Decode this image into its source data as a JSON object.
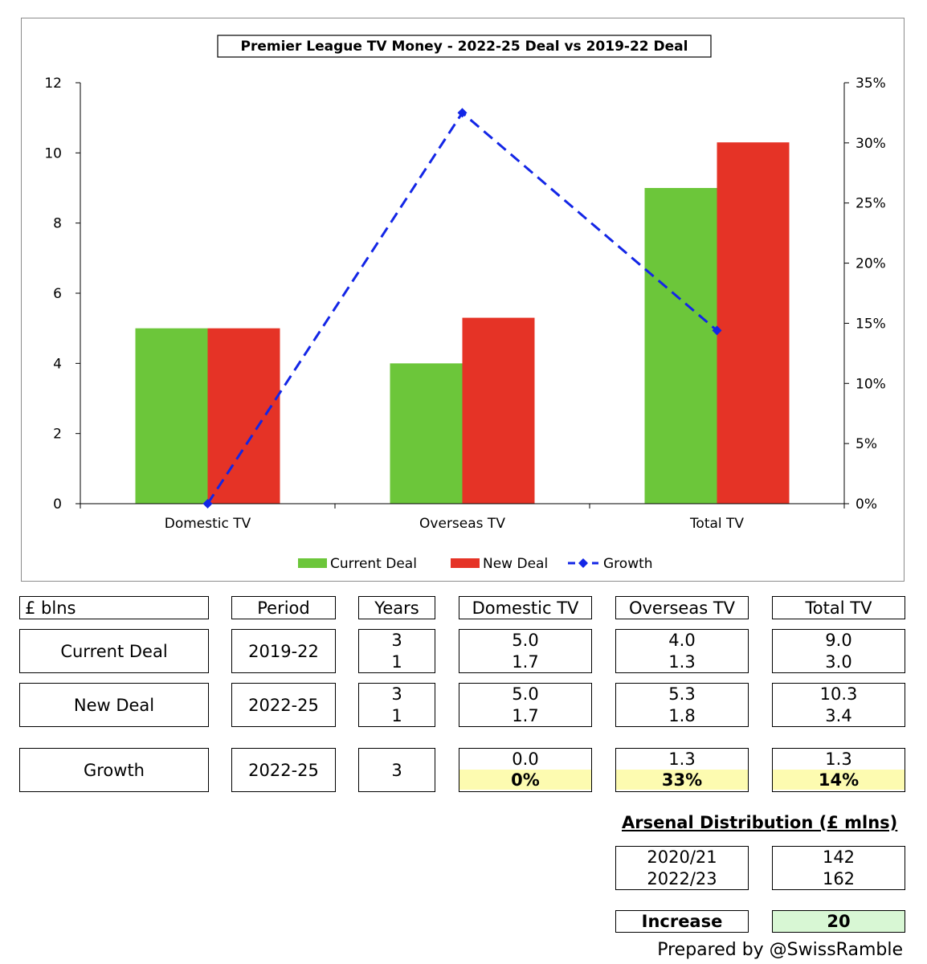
{
  "chart_data": {
    "type": "bar",
    "title": "Premier League TV Money - 2022-25 Deal vs 2019-22 Deal",
    "categories": [
      "Domestic TV",
      "Overseas TV",
      "Total TV"
    ],
    "series": [
      {
        "name": "Current Deal",
        "type": "bar",
        "axis": "left",
        "color": "#6cc63a",
        "values": [
          5.0,
          4.0,
          9.0
        ]
      },
      {
        "name": "New Deal",
        "type": "bar",
        "axis": "left",
        "color": "#e53326",
        "values": [
          5.0,
          5.3,
          10.3
        ]
      },
      {
        "name": "Growth",
        "type": "line",
        "axis": "right",
        "color": "#1326e6",
        "style": "dashed",
        "marker": "diamond",
        "values": [
          0.0,
          32.5,
          14.4
        ]
      }
    ],
    "y_left": {
      "min": 0,
      "max": 12,
      "ticks": [
        "0",
        "2",
        "4",
        "6",
        "8",
        "10",
        "12"
      ]
    },
    "y_right": {
      "min": 0,
      "max": 35,
      "unit": "%",
      "ticks": [
        "0%",
        "5%",
        "10%",
        "15%",
        "20%",
        "25%",
        "30%",
        "35%"
      ]
    },
    "legend_position": "bottom",
    "grid": false
  },
  "table": {
    "unit_header": "£ blns",
    "headers": [
      "Period",
      "Years",
      "Domestic TV",
      "Overseas TV",
      "Total TV"
    ],
    "rows": [
      {
        "label": "Current Deal",
        "period": "2019-22",
        "years": [
          "3",
          "1"
        ],
        "domestic": [
          "5.0",
          "1.7"
        ],
        "overseas": [
          "4.0",
          "1.3"
        ],
        "total": [
          "9.0",
          "3.0"
        ]
      },
      {
        "label": "New Deal",
        "period": "2022-25",
        "years": [
          "3",
          "1"
        ],
        "domestic": [
          "5.0",
          "1.7"
        ],
        "overseas": [
          "5.3",
          "1.8"
        ],
        "total": [
          "10.3",
          "3.4"
        ]
      }
    ],
    "growth": {
      "label": "Growth",
      "period": "2022-25",
      "years": "3",
      "domestic": [
        "0.0",
        "0%"
      ],
      "overseas": [
        "1.3",
        "33%"
      ],
      "total": [
        "1.3",
        "14%"
      ]
    }
  },
  "arsenal": {
    "title": "Arsenal Distribution (£ mlns)",
    "seasons": [
      "2020/21",
      "2022/23"
    ],
    "amounts": [
      "142",
      "162"
    ],
    "increase_label": "Increase",
    "increase_value": "20"
  },
  "credit": "Prepared by @SwissRamble",
  "colors": {
    "growth_highlight": "#fdfbb0",
    "increase_highlight": "#d8f7d4"
  }
}
